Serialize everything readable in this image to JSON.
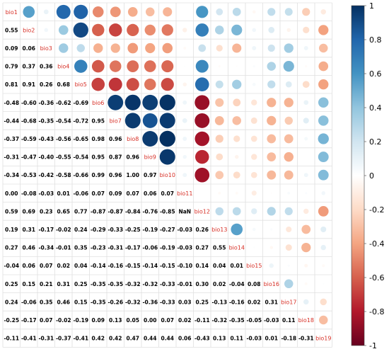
{
  "chart_data": {
    "type": "heatmap",
    "labels": [
      "bio1",
      "bio2",
      "bio3",
      "bio4",
      "bio5",
      "bio6",
      "bio7",
      "bio8",
      "bio9",
      "bio10",
      "bio11",
      "bio12",
      "bio13",
      "bio14",
      "bio15",
      "bio16",
      "bio17",
      "bio18",
      "bio19"
    ],
    "lower": [
      [],
      [
        0.55
      ],
      [
        0.09,
        0.06
      ],
      [
        0.79,
        0.37,
        0.36
      ],
      [
        0.81,
        0.91,
        0.26,
        0.68
      ],
      [
        -0.48,
        -0.6,
        -0.36,
        -0.62,
        -0.69
      ],
      [
        -0.44,
        -0.68,
        -0.35,
        -0.54,
        -0.72,
        0.95
      ],
      [
        -0.37,
        -0.59,
        -0.43,
        -0.56,
        -0.65,
        0.98,
        0.96
      ],
      [
        -0.31,
        -0.47,
        -0.4,
        -0.55,
        -0.54,
        0.95,
        0.87,
        0.96
      ],
      [
        -0.34,
        -0.53,
        -0.42,
        -0.58,
        -0.66,
        0.99,
        0.96,
        1.0,
        0.97
      ],
      [
        0.0,
        -0.08,
        -0.03,
        0.01,
        -0.06,
        0.07,
        0.09,
        0.07,
        0.06,
        0.07
      ],
      [
        0.59,
        0.69,
        0.23,
        0.65,
        0.77,
        -0.87,
        -0.87,
        -0.84,
        -0.76,
        -0.85
      ],
      [
        0.19,
        0.31,
        -0.17,
        -0.02,
        0.24,
        -0.29,
        -0.33,
        -0.25,
        -0.19,
        -0.27,
        -0.03,
        0.26
      ],
      [
        0.27,
        0.46,
        -0.34,
        -0.01,
        0.35,
        -0.23,
        -0.31,
        -0.17,
        -0.06,
        -0.19,
        -0.03,
        0.27,
        0.55
      ],
      [
        -0.04,
        0.06,
        0.07,
        0.02,
        0.04,
        -0.14,
        -0.16,
        -0.15,
        -0.14,
        -0.15,
        -0.1,
        0.14,
        0.04,
        0.01
      ],
      [
        0.25,
        0.15,
        0.21,
        0.31,
        0.25,
        -0.35,
        -0.35,
        -0.32,
        -0.32,
        -0.33,
        -0.01,
        0.3,
        0.02,
        -0.04,
        0.08
      ],
      [
        0.24,
        -0.06,
        0.35,
        0.46,
        0.15,
        -0.35,
        -0.26,
        -0.32,
        -0.36,
        -0.33,
        0.03,
        0.25,
        -0.13,
        -0.16,
        0.02,
        0.31
      ],
      [
        -0.25,
        -0.17,
        0.07,
        -0.02,
        -0.19,
        0.09,
        0.13,
        0.05,
        0.0,
        0.07,
        0.02,
        -0.11,
        -0.32,
        -0.35,
        -0.05,
        -0.03,
        0.11
      ],
      [
        -0.11,
        -0.41,
        -0.31,
        -0.37,
        -0.41,
        0.42,
        0.42,
        0.47,
        0.44,
        0.44,
        0.06,
        -0.43,
        0.13,
        0.11,
        -0.03,
        0.01,
        -0.18,
        -0.31
      ]
    ],
    "colorbar_ticks": [
      "1",
      "0.8",
      "0.6",
      "0.4",
      "0.2",
      "0",
      "-0.2",
      "-0.4",
      "-0.6",
      "-0.8",
      "-1"
    ],
    "color_scale": {
      "low": "#67001f",
      "mid": "#ffffff",
      "high": "#053061"
    },
    "upper_glyph": "circle",
    "lower_glyph": "number",
    "diagonal_label_color": "#d73027",
    "grid": true,
    "legend_placement": "right"
  }
}
